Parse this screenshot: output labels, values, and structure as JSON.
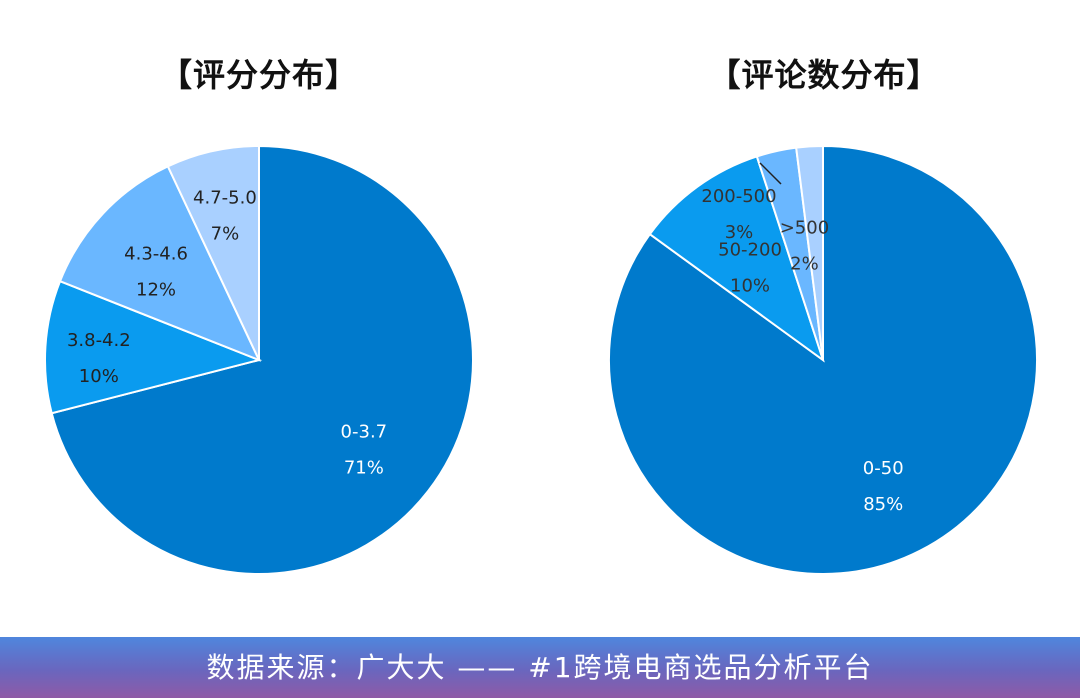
{
  "footer": {
    "source_text": "数据来源：广大大 —— #1跨境电商选品分析平台"
  },
  "chart_data": [
    {
      "type": "pie",
      "title": "【评分分布】",
      "colors": [
        "#007acc",
        "#0a9bef",
        "#6ab7ff",
        "#a9d0ff"
      ],
      "slices": [
        {
          "label": "0-3.7",
          "value": 71,
          "pct_label": "71%"
        },
        {
          "label": "3.8-4.2",
          "value": 10,
          "pct_label": "10%"
        },
        {
          "label": "4.3-4.6",
          "value": 12,
          "pct_label": "12%"
        },
        {
          "label": "4.7-5.0",
          "value": 7,
          "pct_label": "7%"
        }
      ]
    },
    {
      "type": "pie",
      "title": "【评论数分布】",
      "colors": [
        "#007acc",
        "#0a9bef",
        "#6ab7ff",
        "#a9d0ff"
      ],
      "slices": [
        {
          "label": "0-50",
          "value": 85,
          "pct_label": "85%"
        },
        {
          "label": "50-200",
          "value": 10,
          "pct_label": "10%"
        },
        {
          "label": "200-500",
          "value": 3,
          "pct_label": "3%"
        },
        {
          "label": ">500",
          "value": 2,
          "pct_label": "2%"
        }
      ]
    }
  ]
}
